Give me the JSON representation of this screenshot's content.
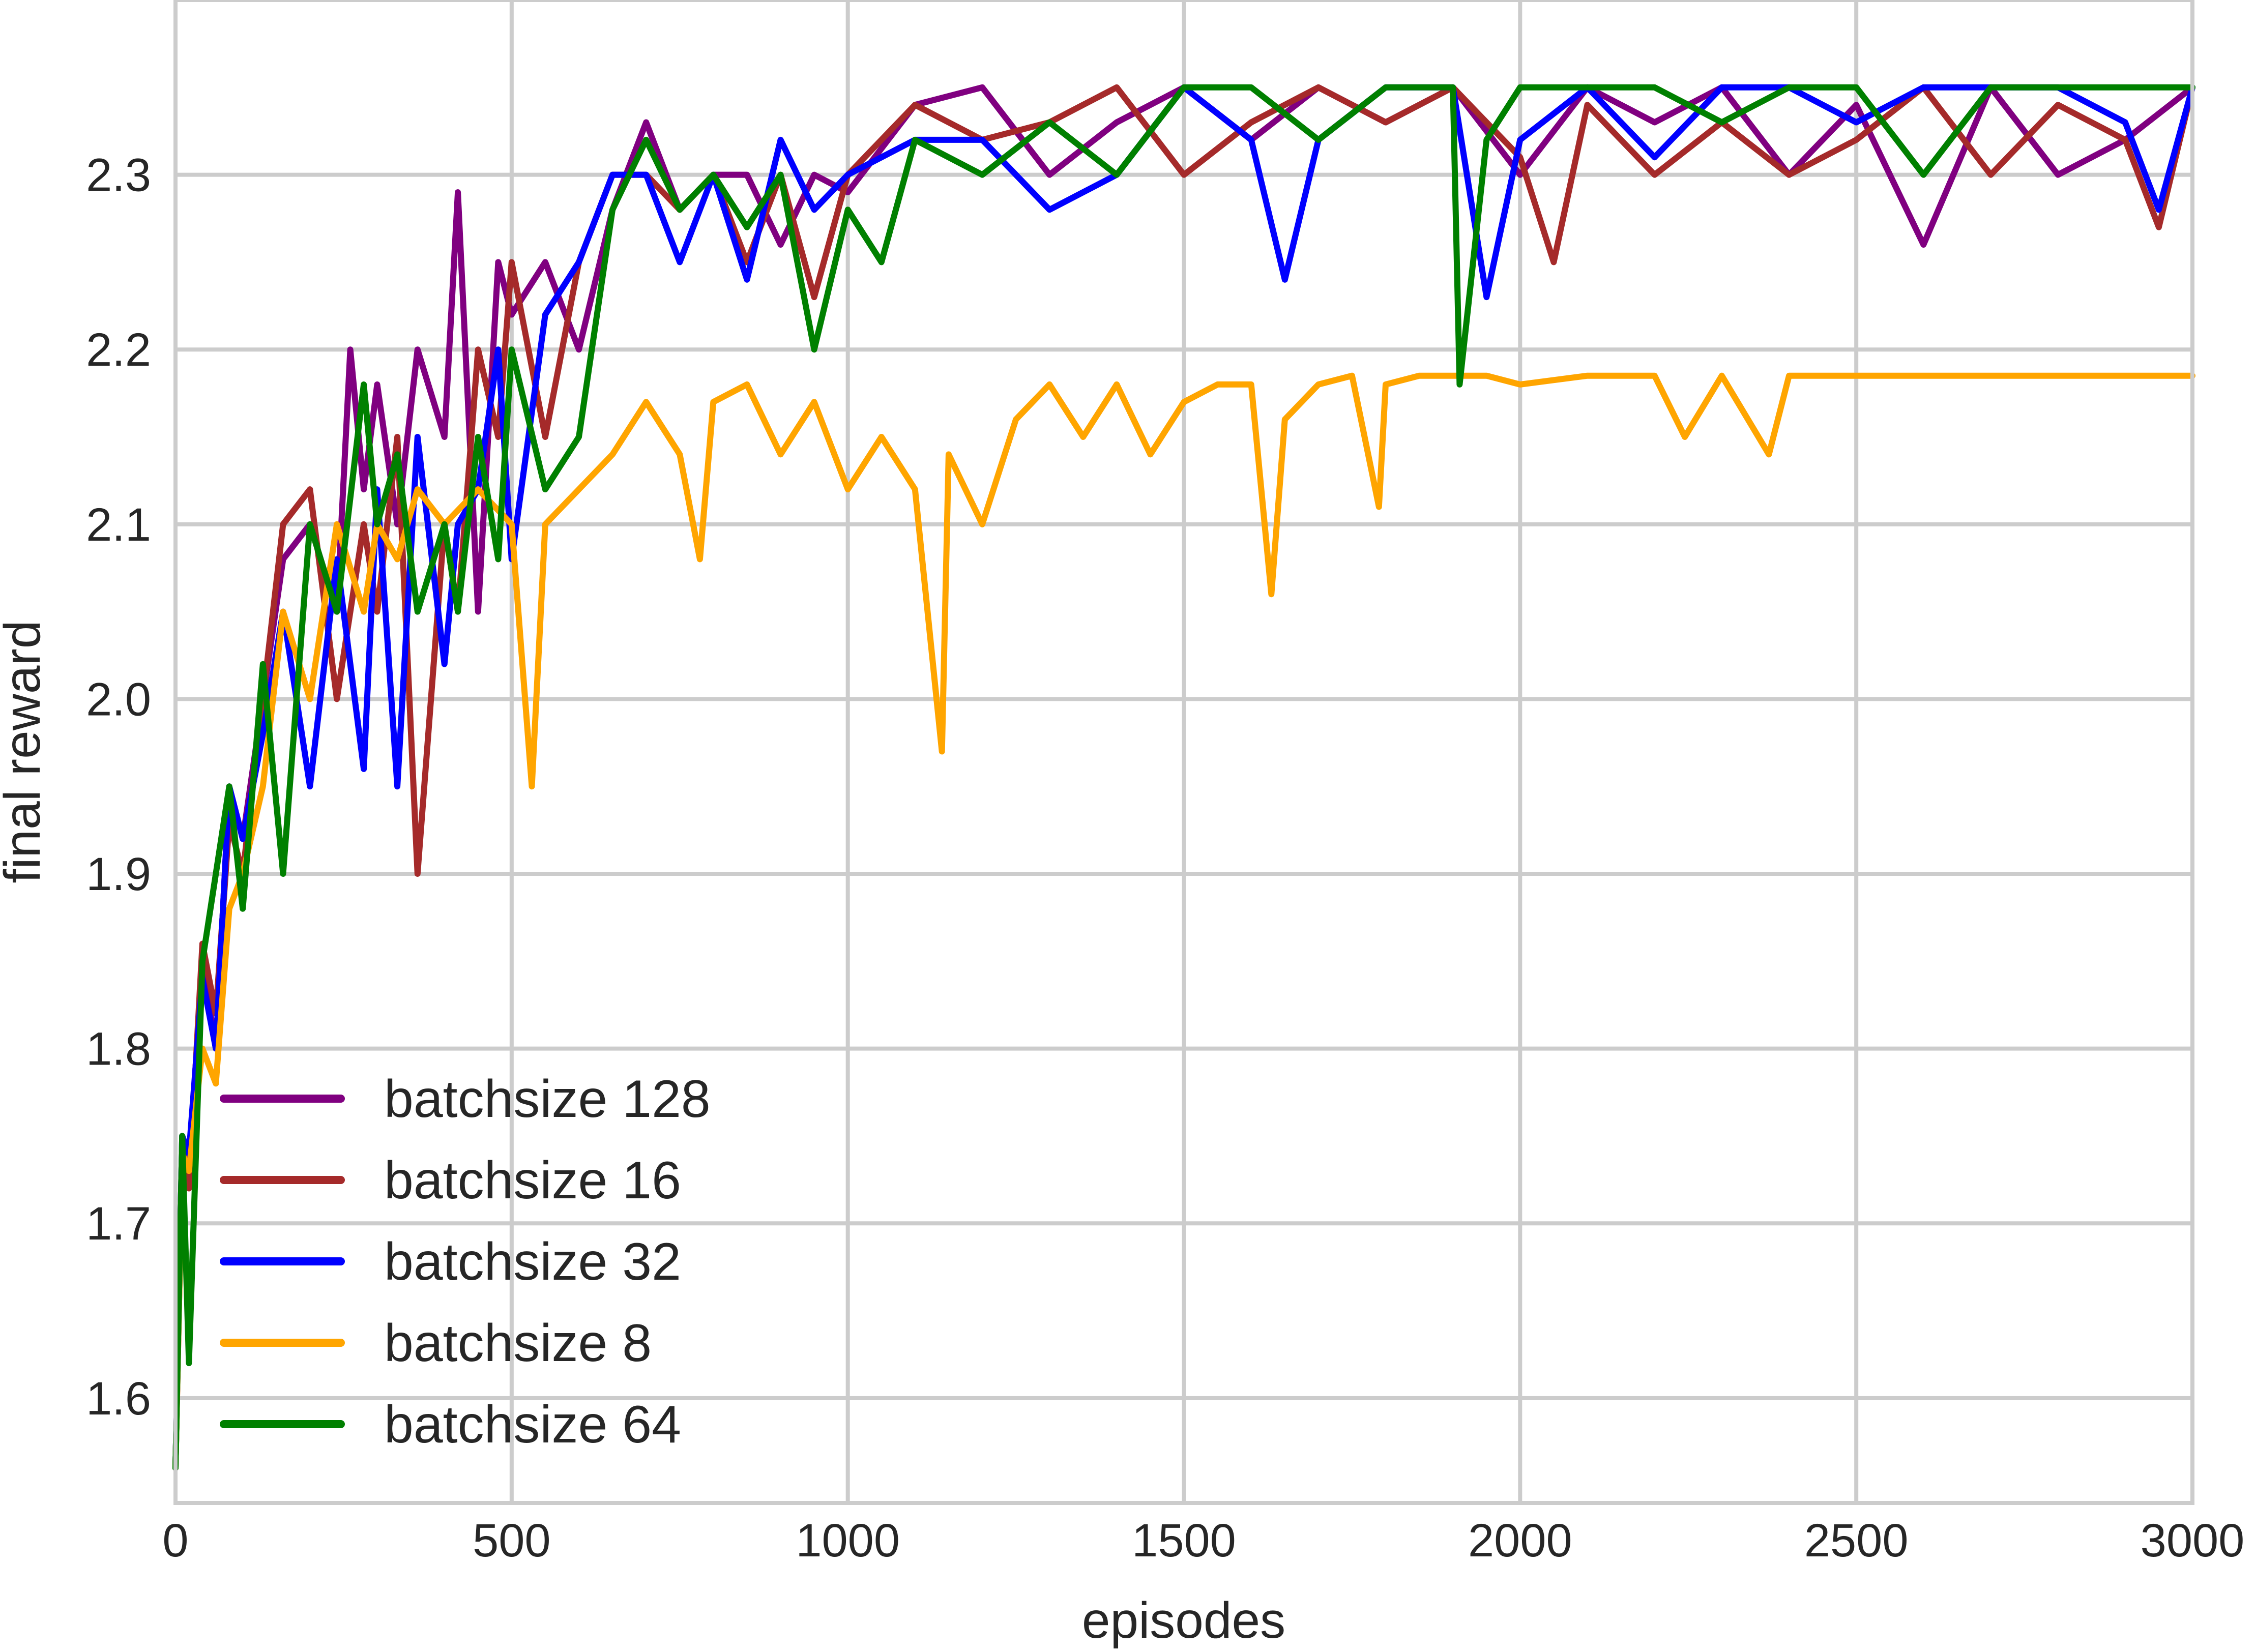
{
  "chart_data": {
    "type": "line",
    "title": "",
    "xlabel": "episodes",
    "ylabel": "final reward",
    "xlim": [
      0,
      3000
    ],
    "ylim": [
      1.54,
      2.4
    ],
    "xticks": [
      "0",
      "500",
      "1000",
      "1500",
      "2000",
      "2500",
      "3000"
    ],
    "yticks": [
      "1.6",
      "1.7",
      "1.8",
      "1.9",
      "2.0",
      "2.1",
      "2.2",
      "2.3"
    ],
    "grid": true,
    "legend_position": "lower-left",
    "series": [
      {
        "name": "batchsize 128",
        "color": "#800080",
        "x": [
          0,
          10,
          20,
          40,
          60,
          80,
          100,
          130,
          160,
          200,
          240,
          260,
          280,
          300,
          330,
          360,
          400,
          420,
          450,
          480,
          500,
          550,
          600,
          650,
          700,
          750,
          800,
          850,
          900,
          950,
          1000,
          1100,
          1200,
          1300,
          1400,
          1500,
          1600,
          1700,
          1800,
          1900,
          2000,
          2100,
          2200,
          2300,
          2400,
          2500,
          2600,
          2700,
          2800,
          2900,
          3000
        ],
        "y": [
          1.56,
          1.75,
          1.73,
          1.85,
          1.8,
          1.95,
          1.92,
          2.0,
          2.08,
          2.1,
          2.05,
          2.2,
          2.12,
          2.18,
          2.1,
          2.2,
          2.15,
          2.29,
          2.05,
          2.25,
          2.22,
          2.25,
          2.2,
          2.28,
          2.33,
          2.28,
          2.3,
          2.3,
          2.26,
          2.3,
          2.29,
          2.34,
          2.35,
          2.3,
          2.33,
          2.35,
          2.32,
          2.35,
          2.33,
          2.35,
          2.3,
          2.35,
          2.33,
          2.35,
          2.3,
          2.34,
          2.26,
          2.35,
          2.3,
          2.32,
          2.35
        ]
      },
      {
        "name": "batchsize 16",
        "color": "#a52a2a",
        "x": [
          0,
          10,
          20,
          40,
          60,
          80,
          100,
          130,
          160,
          200,
          240,
          280,
          300,
          330,
          360,
          400,
          420,
          450,
          480,
          500,
          550,
          600,
          650,
          700,
          750,
          800,
          850,
          900,
          950,
          1000,
          1100,
          1200,
          1300,
          1400,
          1500,
          1600,
          1700,
          1800,
          1900,
          2000,
          2050,
          2100,
          2200,
          2300,
          2400,
          2500,
          2600,
          2700,
          2800,
          2900,
          2950,
          3000
        ],
        "y": [
          1.56,
          1.74,
          1.72,
          1.86,
          1.82,
          1.93,
          1.9,
          2.0,
          2.1,
          2.12,
          2.0,
          2.1,
          2.05,
          2.15,
          1.9,
          2.1,
          2.05,
          2.2,
          2.15,
          2.25,
          2.15,
          2.25,
          2.3,
          2.3,
          2.28,
          2.3,
          2.25,
          2.3,
          2.23,
          2.3,
          2.34,
          2.32,
          2.33,
          2.35,
          2.3,
          2.33,
          2.35,
          2.33,
          2.35,
          2.31,
          2.25,
          2.34,
          2.3,
          2.33,
          2.3,
          2.32,
          2.35,
          2.3,
          2.34,
          2.32,
          2.27,
          2.35
        ]
      },
      {
        "name": "batchsize 32",
        "color": "#0000ff",
        "x": [
          0,
          10,
          20,
          40,
          60,
          80,
          100,
          130,
          160,
          200,
          240,
          280,
          300,
          330,
          360,
          400,
          420,
          450,
          480,
          500,
          550,
          600,
          650,
          700,
          750,
          800,
          850,
          900,
          950,
          1000,
          1100,
          1200,
          1300,
          1400,
          1500,
          1600,
          1650,
          1700,
          1800,
          1900,
          1950,
          2000,
          2100,
          2200,
          2300,
          2400,
          2500,
          2600,
          2700,
          2800,
          2900,
          2950,
          3000
        ],
        "y": [
          1.56,
          1.75,
          1.74,
          1.84,
          1.8,
          1.95,
          1.92,
          1.98,
          2.05,
          1.95,
          2.08,
          1.96,
          2.12,
          1.95,
          2.15,
          2.02,
          2.1,
          2.12,
          2.2,
          2.08,
          2.22,
          2.25,
          2.3,
          2.3,
          2.25,
          2.3,
          2.24,
          2.32,
          2.28,
          2.3,
          2.32,
          2.32,
          2.28,
          2.3,
          2.35,
          2.32,
          2.24,
          2.32,
          2.35,
          2.35,
          2.23,
          2.32,
          2.35,
          2.31,
          2.35,
          2.35,
          2.33,
          2.35,
          2.35,
          2.35,
          2.33,
          2.28,
          2.35
        ]
      },
      {
        "name": "batchsize 8",
        "color": "#ffa500",
        "x": [
          0,
          10,
          20,
          40,
          60,
          80,
          100,
          130,
          160,
          200,
          240,
          280,
          300,
          330,
          360,
          400,
          450,
          500,
          530,
          550,
          600,
          650,
          700,
          750,
          780,
          800,
          850,
          900,
          950,
          1000,
          1050,
          1100,
          1140,
          1150,
          1200,
          1250,
          1300,
          1350,
          1400,
          1450,
          1500,
          1550,
          1600,
          1630,
          1650,
          1700,
          1750,
          1790,
          1800,
          1850,
          1900,
          1950,
          2000,
          2100,
          2200,
          2245,
          2300,
          2370,
          2400,
          2500,
          2600,
          2700,
          2800,
          2900,
          3000
        ],
        "y": [
          1.56,
          1.74,
          1.73,
          1.8,
          1.78,
          1.88,
          1.9,
          1.95,
          2.05,
          2.0,
          2.1,
          2.05,
          2.1,
          2.08,
          2.12,
          2.1,
          2.12,
          2.1,
          1.95,
          2.1,
          2.12,
          2.14,
          2.17,
          2.14,
          2.08,
          2.17,
          2.18,
          2.14,
          2.17,
          2.12,
          2.15,
          2.12,
          1.97,
          2.14,
          2.1,
          2.16,
          2.18,
          2.15,
          2.18,
          2.14,
          2.17,
          2.18,
          2.18,
          2.06,
          2.16,
          2.18,
          2.185,
          2.11,
          2.18,
          2.185,
          2.185,
          2.185,
          2.18,
          2.185,
          2.185,
          2.15,
          2.185,
          2.14,
          2.185,
          2.185,
          2.185,
          2.185,
          2.185,
          2.185,
          2.185
        ]
      },
      {
        "name": "batchsize 64",
        "color": "#008000",
        "x": [
          0,
          10,
          20,
          40,
          60,
          80,
          100,
          130,
          160,
          200,
          240,
          280,
          300,
          330,
          360,
          400,
          420,
          450,
          480,
          500,
          550,
          600,
          650,
          700,
          750,
          800,
          850,
          900,
          950,
          1000,
          1050,
          1100,
          1200,
          1300,
          1400,
          1500,
          1600,
          1700,
          1800,
          1900,
          1910,
          1950,
          2000,
          2100,
          2200,
          2300,
          2400,
          2500,
          2600,
          2700,
          2800,
          2900,
          3000
        ],
        "y": [
          1.56,
          1.75,
          1.62,
          1.85,
          1.9,
          1.95,
          1.88,
          2.02,
          1.9,
          2.1,
          2.05,
          2.18,
          2.1,
          2.14,
          2.05,
          2.1,
          2.05,
          2.15,
          2.08,
          2.2,
          2.12,
          2.15,
          2.28,
          2.32,
          2.28,
          2.3,
          2.27,
          2.3,
          2.2,
          2.28,
          2.25,
          2.32,
          2.3,
          2.33,
          2.3,
          2.35,
          2.35,
          2.32,
          2.35,
          2.35,
          2.18,
          2.32,
          2.35,
          2.35,
          2.35,
          2.33,
          2.35,
          2.35,
          2.3,
          2.35,
          2.35,
          2.35,
          2.35
        ]
      }
    ]
  }
}
